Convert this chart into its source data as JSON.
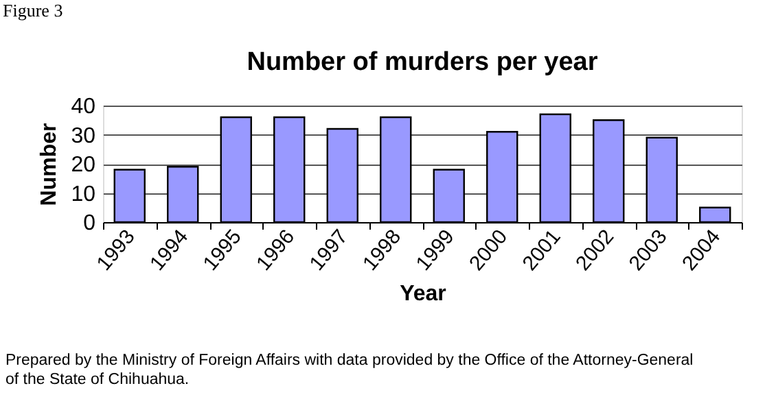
{
  "chart_data": {
    "type": "bar",
    "title": "Number of murders per year",
    "xlabel": "Year",
    "ylabel": "Number",
    "categories": [
      "1993",
      "1994",
      "1995",
      "1996",
      "1997",
      "1998",
      "1999",
      "2000",
      "2001",
      "2002",
      "2003",
      "2004"
    ],
    "values": [
      18,
      19,
      36,
      36,
      32,
      36,
      18,
      31,
      37,
      35,
      29,
      5
    ],
    "color": "#9999ff",
    "ylim": [
      0,
      40
    ],
    "yticks": [
      0,
      10,
      20,
      30,
      40
    ],
    "grid": "y",
    "annotations": [
      "Figure 3",
      "Prepared by the Ministry of Foreign Affairs with data provided by the Office of the Attorney-General of the State of Chihuahua."
    ]
  }
}
